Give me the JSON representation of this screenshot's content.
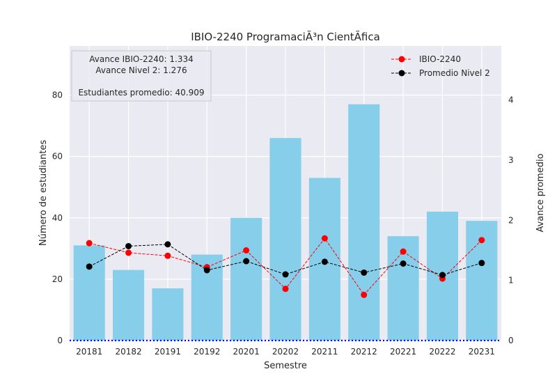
{
  "chart_data": {
    "type": "bar",
    "title": "IBIO-2240 ProgramaciÃ³n CientÃ­fica",
    "xlabel": "Semestre",
    "ylabel": "Número de estudiantes",
    "y2label": "Avance promedio",
    "categories": [
      "20181",
      "20182",
      "20191",
      "20192",
      "20201",
      "20202",
      "20211",
      "20212",
      "20221",
      "20222",
      "20231"
    ],
    "ylim": [
      0,
      96
    ],
    "y2lim": [
      0,
      4.9
    ],
    "yticks": [
      0,
      20,
      40,
      60,
      80
    ],
    "y2ticks": [
      0,
      1,
      2,
      3,
      4
    ],
    "grid": true,
    "reference_line": {
      "axis": "y",
      "value": 0,
      "style": "dotted",
      "color": "#0000ff"
    },
    "bars": {
      "name": "Número de estudiantes",
      "color": "#87ceeb",
      "values": [
        31,
        23,
        17,
        28,
        40,
        66,
        53,
        77,
        34,
        42,
        39
      ]
    },
    "series": [
      {
        "name": "IBIO-2240",
        "axis": "y2",
        "color": "#ff0000",
        "values": [
          1.62,
          1.46,
          1.41,
          1.22,
          1.5,
          0.86,
          1.7,
          0.76,
          1.48,
          1.03,
          1.67
        ]
      },
      {
        "name": "Promedio Nivel 2",
        "axis": "y2",
        "color": "#000000",
        "values": [
          1.23,
          1.57,
          1.6,
          1.17,
          1.32,
          1.1,
          1.31,
          1.13,
          1.28,
          1.09,
          1.29
        ]
      }
    ],
    "legend_position": "top-right",
    "annotation_box": {
      "position": "top-left",
      "lines": [
        "Avance IBIO-2240: 1.334",
        "Avance Nivel 2: 1.276",
        "",
        "Estudiantes promedio: 40.909"
      ]
    }
  },
  "colors": {
    "plot_background": "#eaeaf2",
    "grid": "#ffffff",
    "text": "#262626"
  }
}
